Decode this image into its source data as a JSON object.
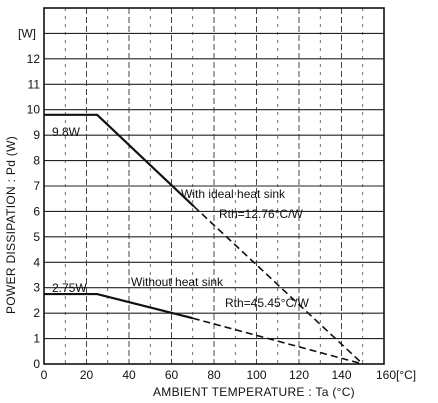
{
  "chart_data": {
    "type": "line",
    "xlabel": "AMBIENT TEMPERATURE : Ta (°C)",
    "ylabel": "POWER DISSIPATION : Pd (W)",
    "x_unit_label": "[°C]",
    "y_unit_label": "[W]",
    "xlim": [
      0,
      160
    ],
    "ylim": [
      0,
      14
    ],
    "x_ticks": [
      "0",
      "20",
      "40",
      "60",
      "80",
      "100",
      "120",
      "140",
      "160"
    ],
    "y_ticks": [
      "0",
      "1",
      "2",
      "3",
      "4",
      "5",
      "6",
      "7",
      "8",
      "9",
      "10",
      "11",
      "12"
    ],
    "grid": true,
    "series": [
      {
        "x": [
          0,
          25,
          70.5,
          150
        ],
        "y": [
          9.8,
          9.8,
          6.2,
          0
        ],
        "solid_until_x": 70.5
      },
      {
        "x": [
          0,
          25,
          70,
          150
        ],
        "y": [
          2.75,
          2.75,
          1.8,
          0
        ],
        "solid_until_x": 70
      }
    ],
    "annotations": {
      "label_9_8w": "9.8W",
      "label_2_75w": "2.75W",
      "with_heat_sink": "With ideal heat sink",
      "rth_with": "Rth=12.76°C/W",
      "without_heat_sink": "Without heat sink",
      "rth_without": "Rth=45.45°C/W"
    }
  }
}
